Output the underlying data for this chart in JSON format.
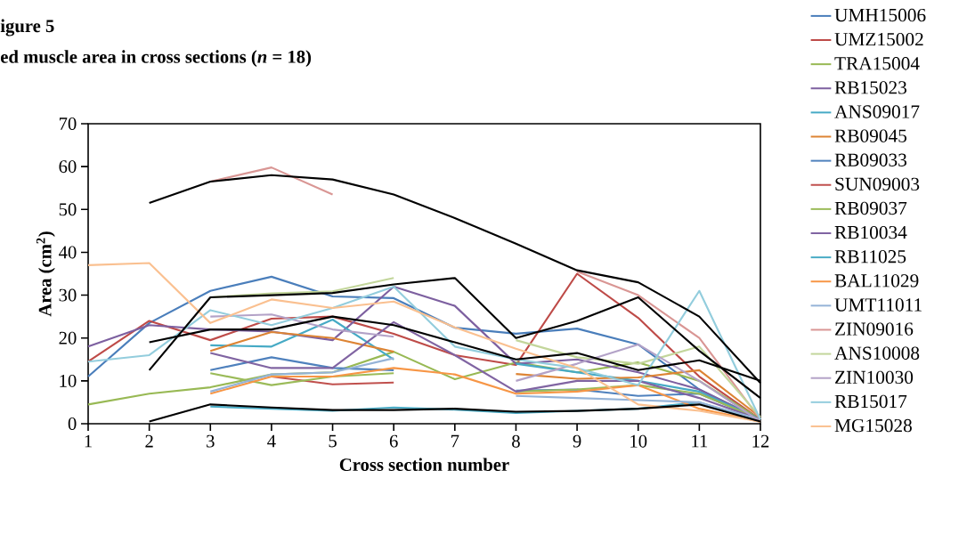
{
  "chart_data": {
    "type": "line",
    "title": "igure 5",
    "subtitle": "ed muscle area in cross sections (*n* = 18)",
    "xlabel": "Cross section number",
    "ylabel": "Area (cm$^{2}$)",
    "x": [
      1,
      2,
      3,
      4,
      5,
      6,
      7,
      8,
      9,
      10,
      11,
      12
    ],
    "xlim": [
      1,
      12
    ],
    "xticks": [
      1,
      2,
      3,
      4,
      5,
      6,
      7,
      8,
      9,
      10,
      11,
      12
    ],
    "ylim": [
      0,
      70
    ],
    "yticks": [
      0,
      10,
      20,
      30,
      40,
      50,
      60,
      70
    ],
    "grid": false,
    "legend": "right",
    "marker": "none",
    "line_style": "solid",
    "series": [
      {
        "name": "UMH15006",
        "color": "#4a7ebb",
        "values": [
          11,
          23.5,
          31,
          34.3,
          29.7,
          29.3,
          22.4,
          21,
          22.2,
          18.5,
          8,
          1
        ]
      },
      {
        "name": "UMZ15002",
        "color": "#be4b48",
        "values": [
          14.5,
          24,
          19.5,
          24.5,
          25,
          21,
          16,
          13.7,
          35,
          24.7,
          11,
          1
        ]
      },
      {
        "name": "TRA15004",
        "color": "#98b954",
        "values": [
          4.5,
          7,
          8.5,
          11.5,
          12,
          16.8,
          10.4,
          14.3,
          12,
          14.3,
          10,
          1
        ]
      },
      {
        "name": "RB15023",
        "color": "#7d60a0",
        "values": [
          18,
          23,
          22,
          21.5,
          19.5,
          32,
          27.5,
          14,
          15,
          12,
          8,
          1
        ]
      },
      {
        "name": "ANS09017",
        "color": "#46aac5",
        "values": [
          null,
          null,
          18.3,
          18,
          24.3,
          15,
          null,
          14,
          12,
          10,
          7.5,
          1
        ]
      },
      {
        "name": "RB09045",
        "color": "#dd8434",
        "values": [
          null,
          null,
          17,
          21.4,
          20,
          16.8,
          null,
          11.6,
          10.5,
          10.8,
          12.5,
          1.5
        ]
      },
      {
        "name": "RB09033",
        "color": "#4f81bd",
        "values": [
          null,
          null,
          12.5,
          15.5,
          13,
          12.5,
          null,
          7.7,
          8,
          6.5,
          7,
          1
        ]
      },
      {
        "name": "SUN09003",
        "color": "#c0504d",
        "values": [
          null,
          null,
          null,
          11,
          9.2,
          9.6,
          null,
          null,
          null,
          null,
          null,
          null
        ]
      },
      {
        "name": "RB09037",
        "color": "#9bbb59",
        "values": [
          null,
          null,
          11.8,
          9,
          11,
          11.8,
          null,
          7.5,
          8,
          9,
          7,
          1
        ]
      },
      {
        "name": "RB10034",
        "color": "#8064a2",
        "values": [
          null,
          null,
          16.5,
          13,
          13,
          23.7,
          16,
          7.5,
          10,
          10,
          6,
          1
        ]
      },
      {
        "name": "RB11025",
        "color": "#4bacc6",
        "values": [
          null,
          null,
          4,
          3.5,
          3,
          3.8,
          3.3,
          2.5,
          3,
          3.5,
          5,
          0.5
        ]
      },
      {
        "name": "BAL11029",
        "color": "#f79646",
        "values": [
          null,
          null,
          7,
          11,
          11,
          13,
          11.5,
          7,
          7.5,
          9,
          3.5,
          0.5
        ]
      },
      {
        "name": "UMT11011",
        "color": "#95b3d7",
        "values": [
          null,
          null,
          7.5,
          11.5,
          12,
          15.3,
          null,
          6.5,
          6,
          5.5,
          5,
          1
        ]
      },
      {
        "name": "ZIN09016",
        "color": "#d99694",
        "values": [
          null,
          null,
          56.5,
          59.8,
          53.5,
          null,
          null,
          null,
          35.5,
          30,
          20,
          1
        ]
      },
      {
        "name": "ANS10008",
        "color": "#c3d69b",
        "values": [
          null,
          null,
          29.5,
          30.4,
          30.9,
          34,
          null,
          19.5,
          15.5,
          14,
          18,
          1.5
        ]
      },
      {
        "name": "ZIN10030",
        "color": "#b3a2c7",
        "values": [
          null,
          null,
          25,
          25.5,
          22,
          20.3,
          null,
          10,
          14,
          18.5,
          10,
          0.5
        ]
      },
      {
        "name": "RB15017",
        "color": "#93cddd",
        "values": [
          14.5,
          16,
          26.5,
          23,
          27,
          32,
          18,
          15,
          13,
          9,
          31,
          1
        ]
      },
      {
        "name": "MG15028",
        "color": "#fac090",
        "values": [
          37,
          37.5,
          23.5,
          29,
          27,
          28.5,
          22.5,
          17.5,
          13,
          4.5,
          3,
          0.5
        ]
      },
      {
        "color": "#000000",
        "values": [
          null,
          51.5,
          56.5,
          58,
          57,
          53.5,
          48,
          42,
          35.8,
          33,
          25,
          9.5
        ]
      },
      {
        "color": "#000000",
        "values": [
          null,
          12.5,
          29.5,
          30,
          30.5,
          32.5,
          34,
          20,
          24,
          29.5,
          17,
          6
        ]
      },
      {
        "color": "#000000",
        "values": [
          null,
          19,
          22,
          22,
          25,
          23,
          19,
          15,
          16.5,
          12.5,
          14.8,
          10
        ]
      },
      {
        "color": "#000000",
        "values": [
          null,
          0.5,
          4.5,
          3.8,
          3.2,
          3.2,
          3.5,
          2.8,
          3,
          3.5,
          4.5,
          0.5
        ]
      }
    ]
  }
}
